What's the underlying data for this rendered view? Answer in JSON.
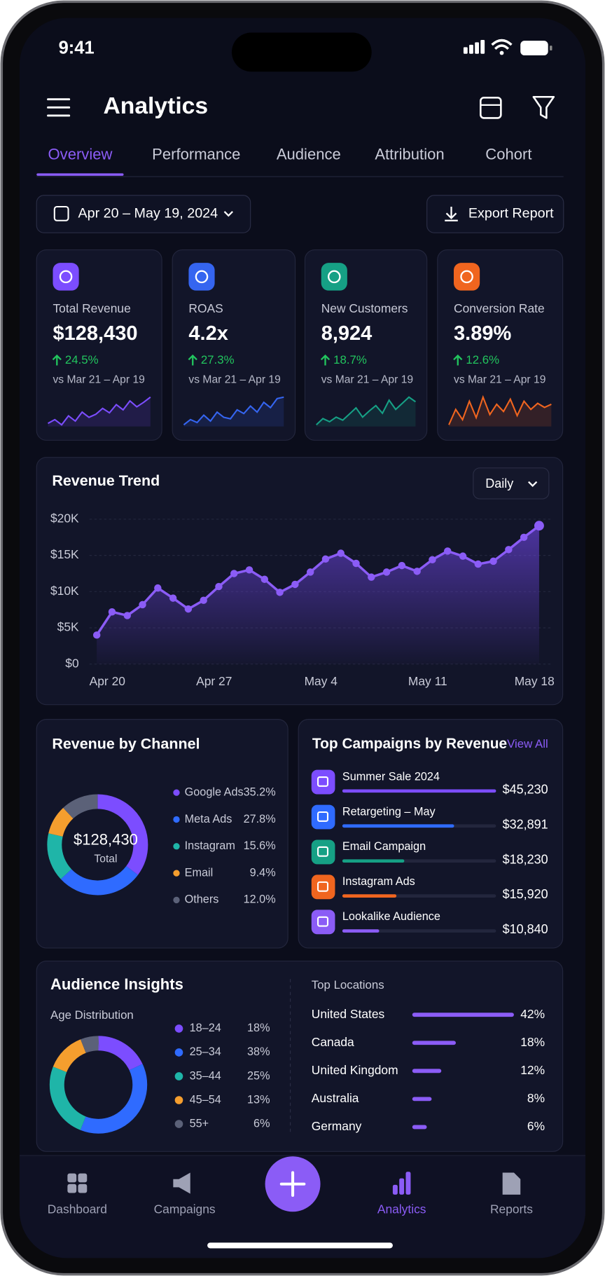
{
  "status_bar": {
    "time": "9:41"
  },
  "header": {
    "title": "Analytics"
  },
  "tabs": [
    "Overview",
    "Performance",
    "Audience",
    "Attribution",
    "Cohort"
  ],
  "date_range": "Apr 20 – May 19, 2024",
  "export_button": "Export Report",
  "kpis": [
    {
      "label": "Total Revenue",
      "value": "$128,430",
      "change": "24.5%",
      "comparison": "vs Mar 21 – Apr 19",
      "color": "#7c4dff",
      "trend": [
        30,
        35,
        28,
        40,
        33,
        45,
        38,
        42,
        50,
        44,
        55,
        48,
        60,
        52,
        58,
        65
      ]
    },
    {
      "label": "ROAS",
      "value": "4.2x",
      "change": "27.3%",
      "comparison": "vs Mar 21 – Apr 19",
      "color": "#3565f0",
      "trend": [
        25,
        32,
        28,
        38,
        30,
        42,
        35,
        33,
        45,
        40,
        50,
        42,
        55,
        48,
        60,
        62
      ]
    },
    {
      "label": "New Customers",
      "value": "8,924",
      "change": "18.7%",
      "comparison": "vs Mar 21 – Apr 19",
      "color": "#16a085",
      "trend": [
        30,
        38,
        34,
        40,
        36,
        44,
        52,
        40,
        48,
        55,
        45,
        62,
        50,
        58,
        66,
        60
      ]
    },
    {
      "label": "Conversion Rate",
      "value": "3.89%",
      "change": "12.6%",
      "comparison": "vs Mar 21 – Apr 19",
      "color": "#f0651f",
      "trend": [
        35,
        50,
        40,
        58,
        42,
        62,
        45,
        55,
        48,
        60,
        44,
        58,
        50,
        56,
        52,
        55
      ]
    }
  ],
  "revenue_trend": {
    "title": "Revenue Trend",
    "period": "Daily",
    "chart": {
      "type": "line",
      "categories": [
        "Apr 20",
        null,
        null,
        null,
        null,
        null,
        null,
        "Apr 27",
        null,
        null,
        null,
        null,
        null,
        null,
        "May 4",
        null,
        null,
        null,
        null,
        null,
        null,
        "May 11",
        null,
        null,
        null,
        null,
        null,
        null,
        "May 18",
        null
      ],
      "values": [
        4000,
        7200,
        6700,
        8200,
        10500,
        9100,
        7600,
        8800,
        10700,
        12500,
        13000,
        11700,
        9900,
        11000,
        12700,
        14500,
        15300,
        13900,
        12000,
        12700,
        13600,
        12800,
        14400,
        15600,
        14900,
        13800,
        14200,
        15800,
        17500,
        19100
      ],
      "color": "#8b5cf6",
      "ylim": [
        0,
        20000
      ],
      "yticks": [
        {
          "value": 0,
          "label": "$0"
        },
        {
          "value": 5000,
          "label": "$5K"
        },
        {
          "value": 10000,
          "label": "$10K"
        },
        {
          "value": 15000,
          "label": "$15K"
        },
        {
          "value": 20000,
          "label": "$20K"
        }
      ],
      "grid": true
    }
  },
  "revenue_by_channel": {
    "title": "Revenue by Channel",
    "center_value": "$128,430",
    "center_label": "Total",
    "chart": {
      "type": "donut",
      "categories": [
        "Google Ads",
        "Meta Ads",
        "Instagram",
        "Email",
        "Others"
      ],
      "values": [
        35.2,
        27.8,
        15.6,
        9.4,
        12.0
      ],
      "value_labels": [
        "35.2%",
        "27.8%",
        "15.6%",
        "9.4%",
        "12.0%"
      ],
      "colors": [
        "#7c4dff",
        "#2f6bff",
        "#1fb5a8",
        "#f59e2e",
        "#5b6178"
      ]
    }
  },
  "top_campaigns": {
    "title": "Top Campaigns by Revenue",
    "link": "View All",
    "items": [
      {
        "name": "Summer Sale 2024",
        "value": 45230,
        "value_label": "$45,230",
        "color": "#7c4dff"
      },
      {
        "name": "Retargeting – May",
        "value": 32891,
        "value_label": "$32,891",
        "color": "#2f6bff"
      },
      {
        "name": "Email Campaign",
        "value": 18230,
        "value_label": "$18,230",
        "color": "#16a085"
      },
      {
        "name": "Instagram Ads",
        "value": 15920,
        "value_label": "$15,920",
        "color": "#f0651f"
      },
      {
        "name": "Lookalike Audience",
        "value": 10840,
        "value_label": "$10,840",
        "color": "#8b5cf6"
      }
    ]
  },
  "audience": {
    "title": "Audience Insights",
    "age": {
      "title": "Age Distribution",
      "chart": {
        "type": "donut",
        "categories": [
          "18–24",
          "25–34",
          "35–44",
          "45–54",
          "55+"
        ],
        "values": [
          18,
          38,
          25,
          13,
          6
        ],
        "value_labels": [
          "18%",
          "38%",
          "25%",
          "13%",
          "6%"
        ],
        "colors": [
          "#7c4dff",
          "#2f6bff",
          "#1fb5a8",
          "#f59e2e",
          "#5b6178"
        ]
      }
    },
    "locations": {
      "title": "Top Locations",
      "categories": [
        "United States",
        "Canada",
        "United Kingdom",
        "Australia",
        "Germany"
      ],
      "values": [
        42,
        18,
        12,
        8,
        6
      ],
      "value_labels": [
        "42%",
        "18%",
        "12%",
        "8%",
        "6%"
      ],
      "color": "#8b5cf6"
    }
  },
  "nav": [
    "Dashboard",
    "Campaigns",
    "Analytics",
    "Reports"
  ]
}
